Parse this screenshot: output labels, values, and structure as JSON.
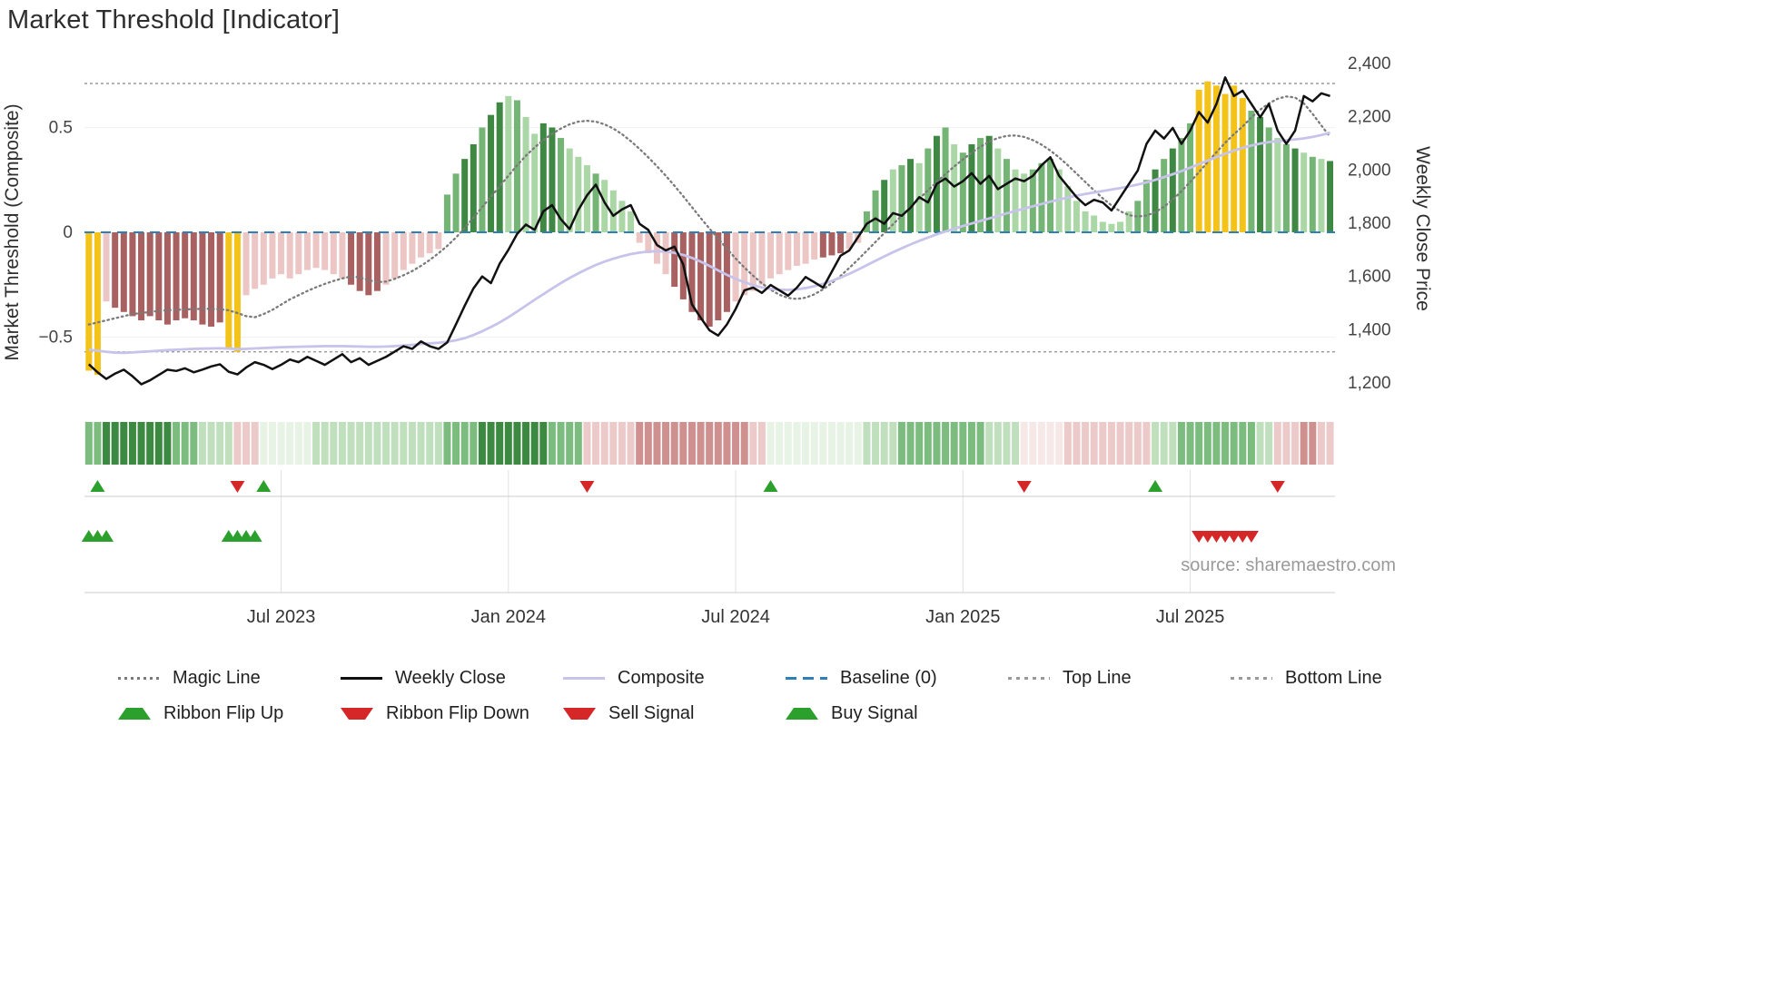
{
  "title": "Market Threshold [Indicator]",
  "source": "source: sharemaestro.com",
  "colors": {
    "weekly_close": "#111111",
    "composite": "#c7c3ea",
    "magic": "#7a7a7a",
    "baseline": "#2d7fb8",
    "guide": "#999999",
    "signal_green": "#2ca02c",
    "signal_red": "#d62728",
    "grid": "#e0e0e0",
    "separator": "#cccccc",
    "bar_palette": {
      "g1": "#abd6a6",
      "g2": "#74b474",
      "g3": "#3f8843",
      "r1": "#ecc6c4",
      "r2": "#a86060",
      "gold": "#f3c319"
    },
    "ribbon_palette": {
      "g0": "#e7f3e5",
      "g1": "#c0e0bd",
      "g2": "#7cbd7f",
      "g3": "#3c8a41",
      "r0": "#f7e8e8",
      "r1": "#eccaca",
      "r2": "#cf9090"
    }
  },
  "chart_data": {
    "type": "bar+line",
    "x_unit": "week",
    "weeks": 143,
    "title": "Market Threshold [Indicator]",
    "left_axis": {
      "label": "Market Threshold (Composite)",
      "ticks": [
        {
          "v": 0.5,
          "label": "0.5"
        },
        {
          "v": 0,
          "label": "0"
        },
        {
          "v": -0.5,
          "label": "−0.5"
        }
      ],
      "range": [
        -0.85,
        0.85
      ]
    },
    "right_axis": {
      "label": "Weekly Close Price",
      "ticks": [
        {
          "v": 2400,
          "label": "2,400"
        },
        {
          "v": 2200,
          "label": "2,200"
        },
        {
          "v": 2000,
          "label": "2,000"
        },
        {
          "v": 1800,
          "label": "1,800"
        },
        {
          "v": 1600,
          "label": "1,600"
        },
        {
          "v": 1400,
          "label": "1,400"
        },
        {
          "v": 1200,
          "label": "1,200"
        }
      ],
      "range": [
        1100,
        2450
      ]
    },
    "x_ticks": [
      {
        "week": 22,
        "label": "Jul 2023"
      },
      {
        "week": 48,
        "label": "Jan 2024"
      },
      {
        "week": 74,
        "label": "Jul 2024"
      },
      {
        "week": 100,
        "label": "Jan 2025"
      },
      {
        "week": 126,
        "label": "Jul 2025"
      }
    ],
    "top_line": 0.71,
    "bottom_line": -0.57,
    "baseline": 0,
    "bars": {
      "values": [
        -0.66,
        -0.68,
        -0.33,
        -0.36,
        -0.38,
        -0.4,
        -0.42,
        -0.4,
        -0.42,
        -0.44,
        -0.42,
        -0.41,
        -0.42,
        -0.44,
        -0.45,
        -0.43,
        -0.55,
        -0.57,
        -0.3,
        -0.27,
        -0.25,
        -0.22,
        -0.2,
        -0.22,
        -0.2,
        -0.18,
        -0.17,
        -0.18,
        -0.2,
        -0.22,
        -0.25,
        -0.28,
        -0.3,
        -0.28,
        -0.25,
        -0.22,
        -0.18,
        -0.15,
        -0.12,
        -0.1,
        -0.08,
        0.18,
        0.28,
        0.35,
        0.42,
        0.5,
        0.56,
        0.62,
        0.65,
        0.63,
        0.55,
        0.47,
        0.52,
        0.5,
        0.45,
        0.4,
        0.36,
        0.32,
        0.28,
        0.25,
        0.2,
        0.15,
        0.1,
        -0.05,
        -0.1,
        -0.15,
        -0.2,
        -0.26,
        -0.32,
        -0.38,
        -0.42,
        -0.45,
        -0.42,
        -0.38,
        -0.33,
        -0.3,
        -0.28,
        -0.25,
        -0.22,
        -0.2,
        -0.18,
        -0.16,
        -0.15,
        -0.13,
        -0.12,
        -0.11,
        -0.1,
        -0.08,
        -0.05,
        0.1,
        0.2,
        0.25,
        0.3,
        0.32,
        0.35,
        0.33,
        0.4,
        0.46,
        0.5,
        0.42,
        0.38,
        0.42,
        0.45,
        0.46,
        0.4,
        0.35,
        0.3,
        0.28,
        0.3,
        0.33,
        0.35,
        0.3,
        0.22,
        0.15,
        0.1,
        0.08,
        0.05,
        0.04,
        0.05,
        0.1,
        0.15,
        0.25,
        0.3,
        0.35,
        0.4,
        0.45,
        0.52,
        0.68,
        0.72,
        0.7,
        0.66,
        0.7,
        0.64,
        0.58,
        0.55,
        0.5,
        0.45,
        0.42,
        0.4,
        0.38,
        0.36,
        0.35,
        0.34
      ],
      "colors": [
        "gold",
        "gold",
        "r1",
        "r2",
        "r2",
        "r2",
        "r2",
        "r2",
        "r2",
        "r2",
        "r2",
        "r2",
        "r2",
        "r2",
        "r2",
        "r2",
        "gold",
        "gold",
        "r1",
        "r1",
        "r1",
        "r1",
        "r1",
        "r1",
        "r1",
        "r1",
        "r1",
        "r1",
        "r1",
        "r1",
        "r2",
        "r2",
        "r2",
        "r2",
        "r1",
        "r1",
        "r1",
        "r1",
        "r1",
        "r1",
        "r1",
        "g2",
        "g2",
        "g3",
        "g3",
        "g2",
        "g3",
        "g3",
        "g1",
        "g2",
        "g1",
        "g1",
        "g3",
        "g3",
        "g2",
        "g1",
        "g1",
        "g1",
        "g2",
        "g1",
        "g1",
        "g1",
        "g1",
        "r1",
        "r1",
        "r1",
        "r1",
        "r2",
        "r2",
        "r2",
        "r2",
        "r2",
        "r2",
        "r2",
        "r1",
        "r1",
        "r1",
        "r1",
        "r1",
        "r1",
        "r1",
        "r1",
        "r1",
        "r1",
        "r2",
        "r2",
        "r2",
        "r1",
        "r1",
        "g2",
        "g2",
        "g3",
        "g1",
        "g2",
        "g3",
        "g1",
        "g2",
        "g3",
        "g2",
        "g1",
        "g2",
        "g3",
        "g2",
        "g3",
        "g1",
        "g2",
        "g1",
        "g1",
        "g2",
        "g2",
        "g2",
        "g1",
        "g1",
        "g1",
        "g1",
        "g1",
        "g1",
        "g1",
        "g1",
        "g1",
        "g2",
        "g2",
        "g3",
        "g2",
        "g3",
        "g2",
        "g2",
        "gold",
        "gold",
        "gold",
        "gold",
        "gold",
        "gold",
        "g2",
        "g3",
        "g2",
        "g1",
        "g2",
        "g3",
        "g1",
        "g2",
        "g1",
        "g3"
      ]
    },
    "weekly_close": [
      1270,
      1240,
      1215,
      1235,
      1250,
      1225,
      1195,
      1210,
      1230,
      1250,
      1245,
      1255,
      1240,
      1250,
      1262,
      1270,
      1242,
      1232,
      1258,
      1278,
      1268,
      1252,
      1268,
      1288,
      1278,
      1298,
      1283,
      1268,
      1288,
      1308,
      1278,
      1293,
      1268,
      1283,
      1298,
      1318,
      1338,
      1328,
      1356,
      1338,
      1328,
      1352,
      1420,
      1490,
      1555,
      1600,
      1575,
      1648,
      1700,
      1760,
      1795,
      1775,
      1845,
      1868,
      1815,
      1778,
      1850,
      1905,
      1945,
      1878,
      1828,
      1852,
      1868,
      1798,
      1775,
      1718,
      1698,
      1712,
      1645,
      1495,
      1445,
      1398,
      1378,
      1420,
      1478,
      1548,
      1558,
      1538,
      1568,
      1548,
      1528,
      1558,
      1598,
      1578,
      1558,
      1618,
      1678,
      1698,
      1748,
      1798,
      1818,
      1798,
      1838,
      1828,
      1858,
      1898,
      1878,
      1948,
      1968,
      1938,
      1958,
      1988,
      1948,
      1978,
      1928,
      1948,
      1968,
      1958,
      1978,
      2018,
      2048,
      1978,
      1938,
      1898,
      1868,
      1888,
      1878,
      1848,
      1898,
      1948,
      1998,
      2098,
      2148,
      2118,
      2158,
      2098,
      2148,
      2218,
      2178,
      2248,
      2348,
      2278,
      2298,
      2248,
      2198,
      2248,
      2148,
      2098,
      2148,
      2278,
      2258,
      2288,
      2278
    ],
    "composite_line": [
      -0.56,
      -0.565,
      -0.57,
      -0.574,
      -0.575,
      -0.573,
      -0.57,
      -0.568,
      -0.565,
      -0.562,
      -0.56,
      -0.558,
      -0.556,
      -0.555,
      -0.554,
      -0.553,
      -0.555,
      -0.557,
      -0.556,
      -0.554,
      -0.552,
      -0.55,
      -0.548,
      -0.547,
      -0.546,
      -0.545,
      -0.544,
      -0.543,
      -0.543,
      -0.543,
      -0.544,
      -0.545,
      -0.546,
      -0.546,
      -0.545,
      -0.543,
      -0.54,
      -0.537,
      -0.533,
      -0.53,
      -0.527,
      -0.522,
      -0.515,
      -0.505,
      -0.49,
      -0.472,
      -0.452,
      -0.43,
      -0.405,
      -0.378,
      -0.35,
      -0.322,
      -0.295,
      -0.268,
      -0.242,
      -0.218,
      -0.196,
      -0.175,
      -0.156,
      -0.14,
      -0.126,
      -0.114,
      -0.104,
      -0.097,
      -0.092,
      -0.09,
      -0.092,
      -0.098,
      -0.108,
      -0.122,
      -0.14,
      -0.16,
      -0.182,
      -0.203,
      -0.222,
      -0.238,
      -0.252,
      -0.263,
      -0.27,
      -0.274,
      -0.275,
      -0.272,
      -0.266,
      -0.257,
      -0.246,
      -0.232,
      -0.216,
      -0.198,
      -0.178,
      -0.157,
      -0.136,
      -0.115,
      -0.095,
      -0.076,
      -0.058,
      -0.041,
      -0.025,
      -0.01,
      0.004,
      0.017,
      0.03,
      0.042,
      0.054,
      0.066,
      0.078,
      0.09,
      0.102,
      0.113,
      0.124,
      0.135,
      0.146,
      0.156,
      0.166,
      0.175,
      0.183,
      0.19,
      0.197,
      0.204,
      0.211,
      0.219,
      0.228,
      0.238,
      0.25,
      0.263,
      0.277,
      0.292,
      0.308,
      0.325,
      0.342,
      0.359,
      0.375,
      0.39,
      0.403,
      0.414,
      0.423,
      0.43,
      0.435,
      0.439,
      0.443,
      0.448,
      0.455,
      0.464,
      0.475
    ],
    "magic_line": [
      -0.44,
      -0.43,
      -0.42,
      -0.41,
      -0.4,
      -0.39,
      -0.385,
      -0.38,
      -0.375,
      -0.372,
      -0.37,
      -0.368,
      -0.366,
      -0.365,
      -0.365,
      -0.367,
      -0.372,
      -0.385,
      -0.4,
      -0.405,
      -0.39,
      -0.37,
      -0.345,
      -0.32,
      -0.3,
      -0.28,
      -0.262,
      -0.246,
      -0.232,
      -0.22,
      -0.21,
      -0.215,
      -0.228,
      -0.238,
      -0.235,
      -0.222,
      -0.205,
      -0.185,
      -0.16,
      -0.132,
      -0.1,
      -0.065,
      -0.025,
      0.02,
      0.07,
      0.12,
      0.17,
      0.22,
      0.27,
      0.32,
      0.365,
      0.405,
      0.44,
      0.47,
      0.495,
      0.515,
      0.528,
      0.532,
      0.528,
      0.515,
      0.495,
      0.468,
      0.435,
      0.398,
      0.358,
      0.315,
      0.27,
      0.222,
      0.172,
      0.12,
      0.068,
      0.018,
      -0.03,
      -0.078,
      -0.125,
      -0.168,
      -0.207,
      -0.243,
      -0.274,
      -0.298,
      -0.313,
      -0.318,
      -0.312,
      -0.296,
      -0.272,
      -0.242,
      -0.208,
      -0.17,
      -0.13,
      -0.088,
      -0.046,
      -0.004,
      0.038,
      0.08,
      0.12,
      0.16,
      0.2,
      0.24,
      0.278,
      0.314,
      0.348,
      0.38,
      0.408,
      0.432,
      0.45,
      0.46,
      0.462,
      0.455,
      0.44,
      0.418,
      0.39,
      0.357,
      0.32,
      0.28,
      0.24,
      0.2,
      0.162,
      0.128,
      0.1,
      0.082,
      0.075,
      0.08,
      0.096,
      0.122,
      0.156,
      0.196,
      0.24,
      0.287,
      0.335,
      0.382,
      0.427,
      0.468,
      0.505,
      0.548,
      0.585,
      0.615,
      0.637,
      0.648,
      0.643,
      0.615,
      0.565,
      0.51,
      0.455
    ],
    "ribbon": [
      "g2",
      "g2",
      "g3",
      "g3",
      "g3",
      "g3",
      "g3",
      "g3",
      "g3",
      "g3",
      "g2",
      "g2",
      "g2",
      "g1",
      "g1",
      "g1",
      "g1",
      "r1",
      "r1",
      "r1",
      "g0",
      "g0",
      "g0",
      "g0",
      "g0",
      "g0",
      "g1",
      "g1",
      "g1",
      "g1",
      "g1",
      "g1",
      "g1",
      "g1",
      "g1",
      "g1",
      "g1",
      "g1",
      "g1",
      "g1",
      "g1",
      "g2",
      "g2",
      "g2",
      "g2",
      "g3",
      "g3",
      "g3",
      "g3",
      "g3",
      "g3",
      "g3",
      "g3",
      "g2",
      "g2",
      "g2",
      "g2",
      "r1",
      "r1",
      "r1",
      "r1",
      "r1",
      "r1",
      "r2",
      "r2",
      "r2",
      "r2",
      "r2",
      "r2",
      "r2",
      "r2",
      "r2",
      "r2",
      "r2",
      "r2",
      "r2",
      "r1",
      "r1",
      "g0",
      "g0",
      "g0",
      "g0",
      "g0",
      "g0",
      "g0",
      "g0",
      "g0",
      "g0",
      "g0",
      "g1",
      "g1",
      "g1",
      "g1",
      "g2",
      "g2",
      "g2",
      "g2",
      "g2",
      "g2",
      "g2",
      "g2",
      "g2",
      "g2",
      "g1",
      "g1",
      "g1",
      "g1",
      "r0",
      "r0",
      "r0",
      "r0",
      "r0",
      "r1",
      "r1",
      "r1",
      "r1",
      "r1",
      "r1",
      "r1",
      "r1",
      "r1",
      "r1",
      "g1",
      "g1",
      "g1",
      "g2",
      "g2",
      "g2",
      "g2",
      "g2",
      "g2",
      "g2",
      "g2",
      "g2",
      "g1",
      "g1",
      "r1",
      "r1",
      "r1",
      "r2",
      "r2",
      "r1",
      "r1"
    ],
    "signals": {
      "ribbon_flip_up": [
        1,
        20,
        78,
        122
      ],
      "ribbon_flip_down": [
        17,
        57,
        107,
        136
      ],
      "buy": [
        0,
        1,
        2,
        16,
        17,
        18,
        19
      ],
      "sell": [
        127,
        128,
        129,
        130,
        131,
        132,
        133
      ]
    }
  },
  "legend": {
    "row1": [
      {
        "label": "Magic Line",
        "swatch": "dotted-gray"
      },
      {
        "label": "Weekly Close",
        "swatch": "solid-black"
      },
      {
        "label": "Composite",
        "swatch": "solid-purple"
      },
      {
        "label": "Baseline (0)",
        "swatch": "dashed-blue"
      },
      {
        "label": "Top Line",
        "swatch": "dashed-gray"
      },
      {
        "label": "Bottom Line",
        "swatch": "dashed-gray"
      }
    ],
    "row2": [
      {
        "label": "Ribbon Flip Up",
        "swatch": "tri-up"
      },
      {
        "label": "Ribbon Flip Down",
        "swatch": "tri-down"
      },
      {
        "label": "Sell Signal",
        "swatch": "tri-down"
      },
      {
        "label": "Buy Signal",
        "swatch": "tri-up"
      }
    ]
  }
}
